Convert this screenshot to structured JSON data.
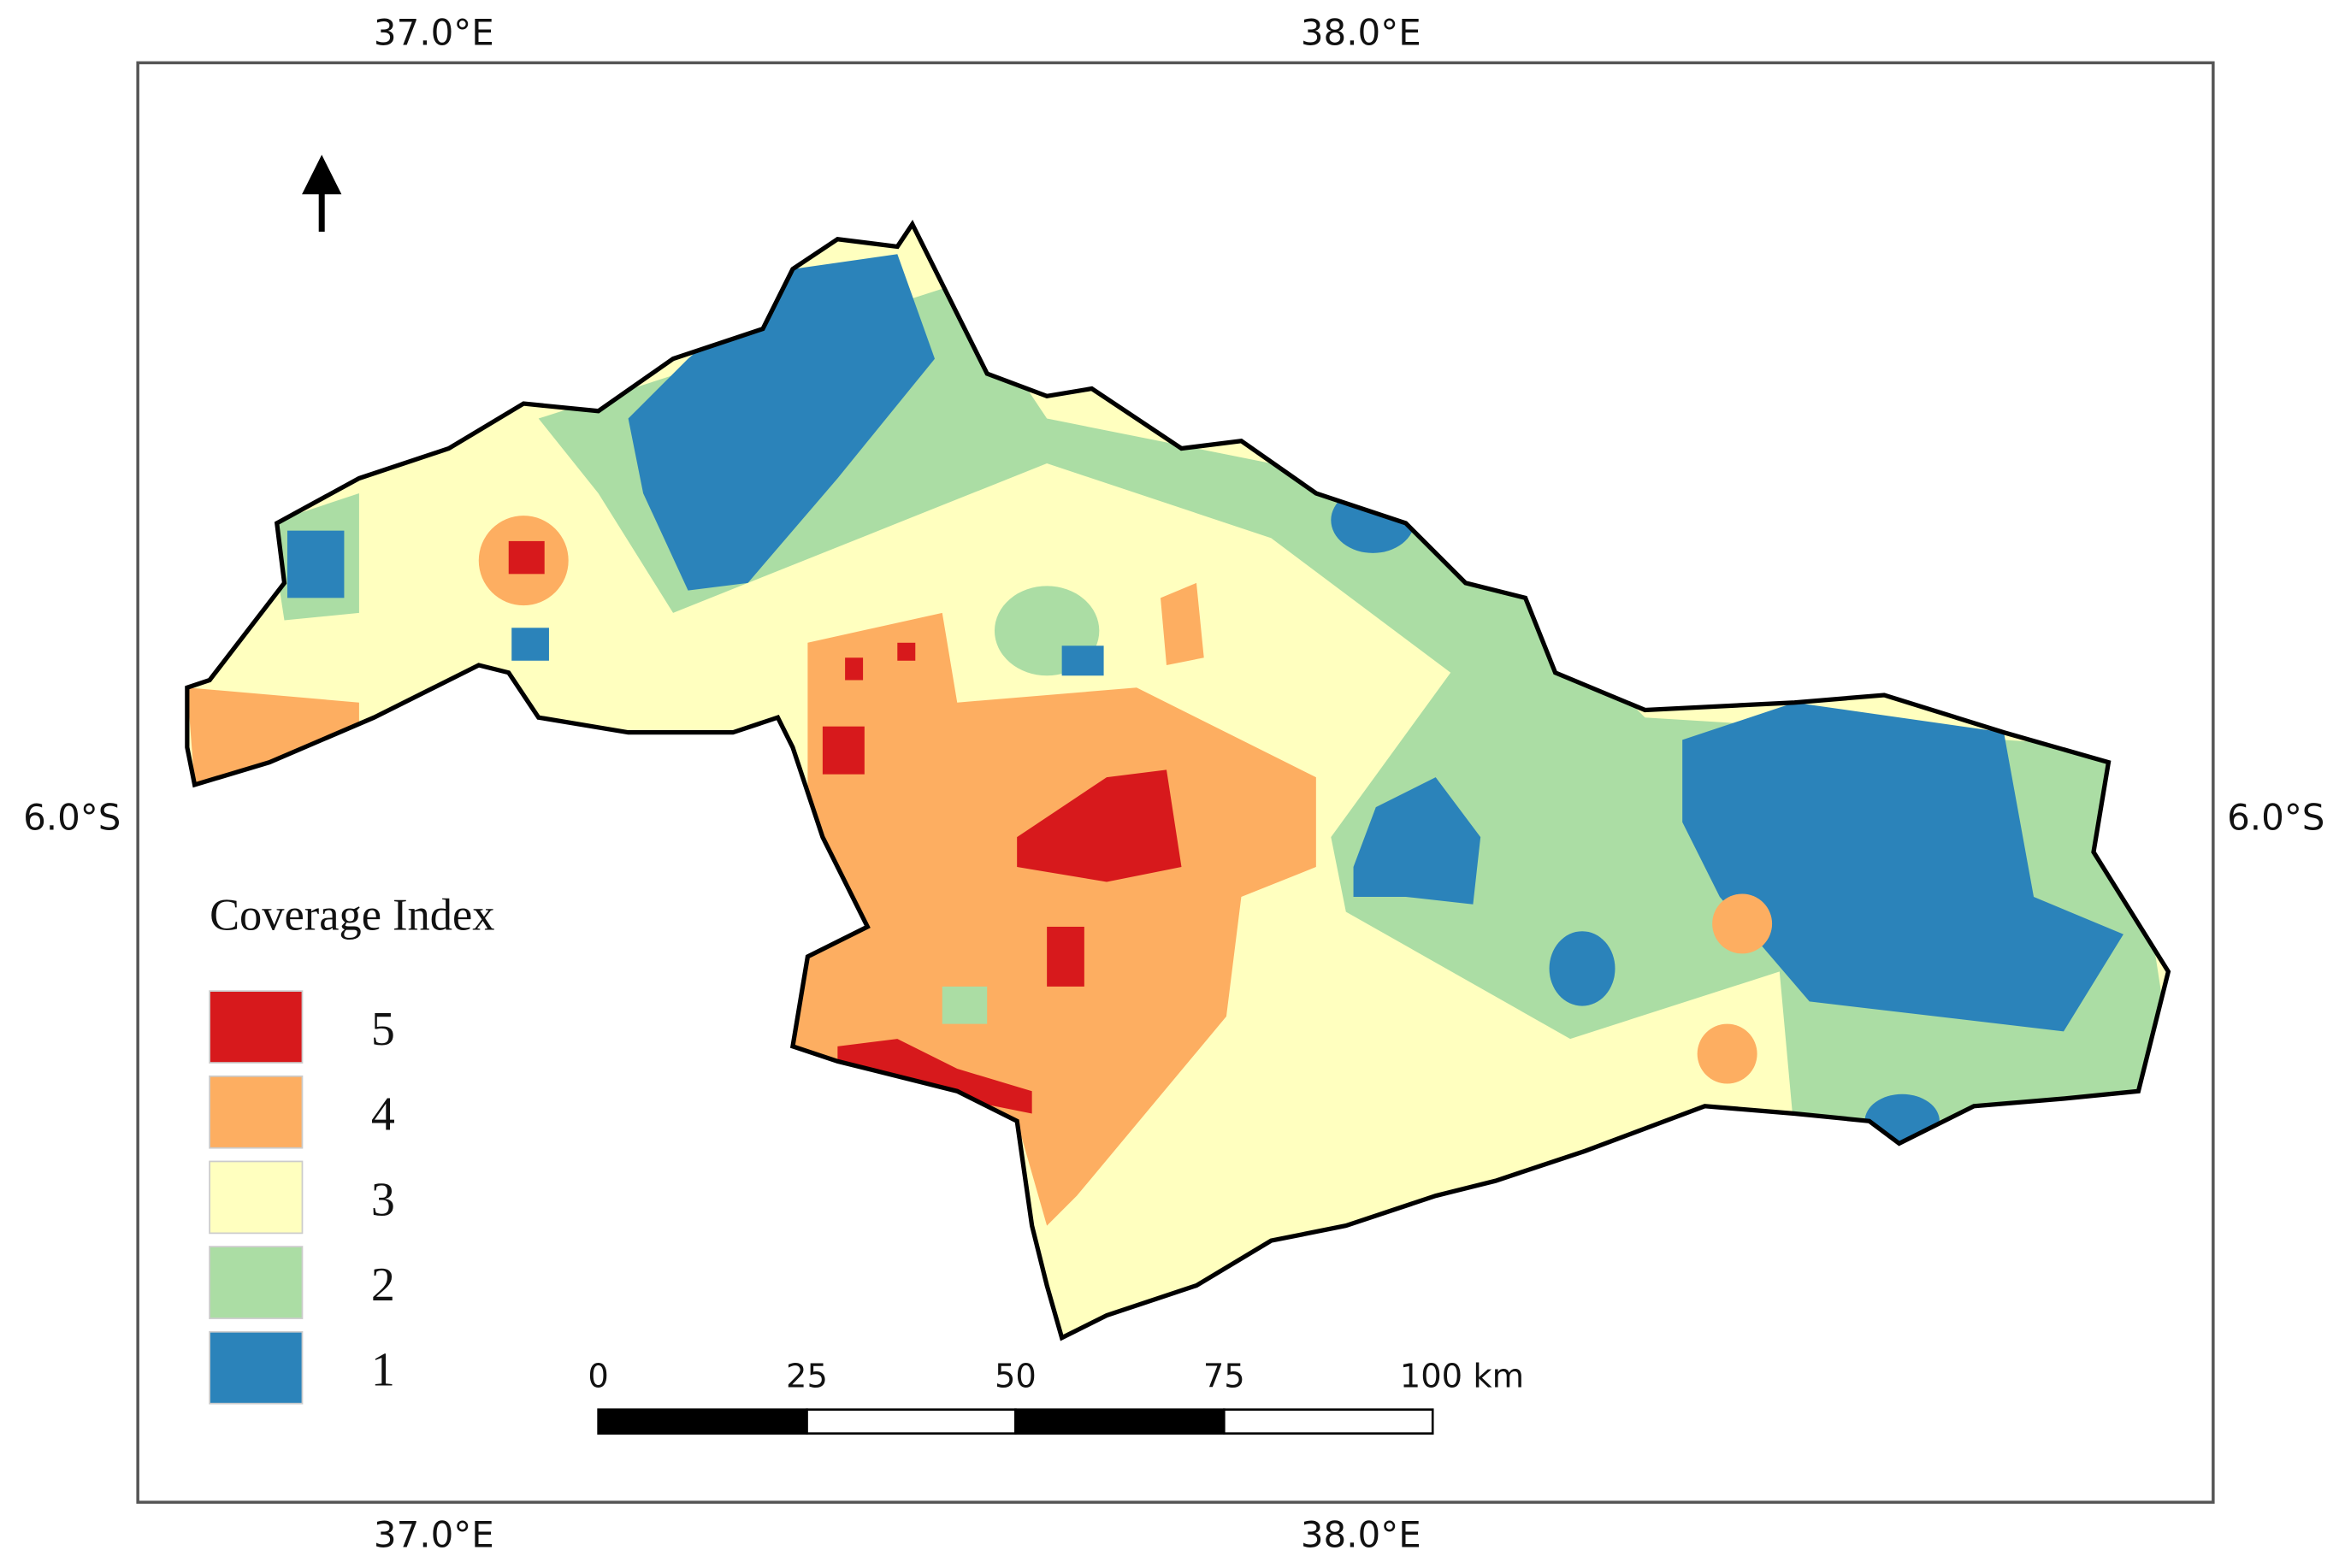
{
  "graticule": {
    "lon_labels": [
      "37.0°E",
      "38.0°E"
    ],
    "lat_labels": [
      "6.0°S"
    ]
  },
  "legend": {
    "title": "Coverage Index",
    "items": [
      {
        "label": "5",
        "color": "#d7191c"
      },
      {
        "label": "4",
        "color": "#fdae61"
      },
      {
        "label": "3",
        "color": "#ffffbf"
      },
      {
        "label": "2",
        "color": "#abdda4"
      },
      {
        "label": "1",
        "color": "#2b83ba"
      }
    ]
  },
  "scale_bar": {
    "ticks": [
      0,
      25,
      50,
      75,
      {
        "value": 100,
        "label": "100 km"
      }
    ]
  }
}
